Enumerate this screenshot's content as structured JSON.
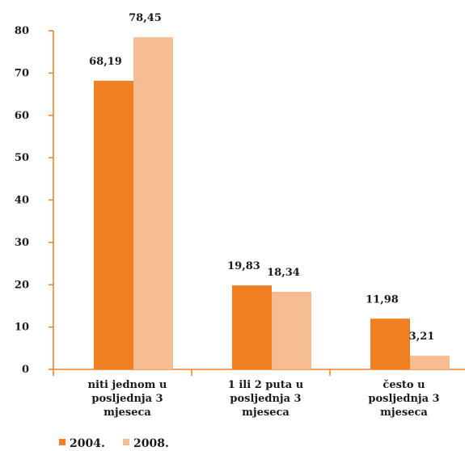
{
  "chart_data": {
    "type": "bar",
    "categories": [
      [
        "niti jednom u",
        "posljednja 3",
        "mjeseca"
      ],
      [
        "1 ili 2 puta u",
        "posljednja 3",
        "mjeseca"
      ],
      [
        "često u",
        "posljednja 3",
        "mjeseca"
      ]
    ],
    "series": [
      {
        "name": "2004.",
        "values": [
          68.19,
          19.83,
          11.98
        ],
        "labels": [
          "68,19",
          "19,83",
          "11,98"
        ],
        "color": "#f07f22"
      },
      {
        "name": "2008.",
        "values": [
          78.45,
          18.34,
          3.21
        ],
        "labels": [
          "78,45",
          "18,34",
          "3,21"
        ],
        "color": "#f7bd92"
      }
    ],
    "ylim": [
      0,
      80
    ],
    "yticks": [
      0,
      10,
      20,
      30,
      40,
      50,
      60,
      70,
      80
    ],
    "grid": false,
    "axis_color": "#f07f22",
    "legend_position": "bottom-left"
  }
}
